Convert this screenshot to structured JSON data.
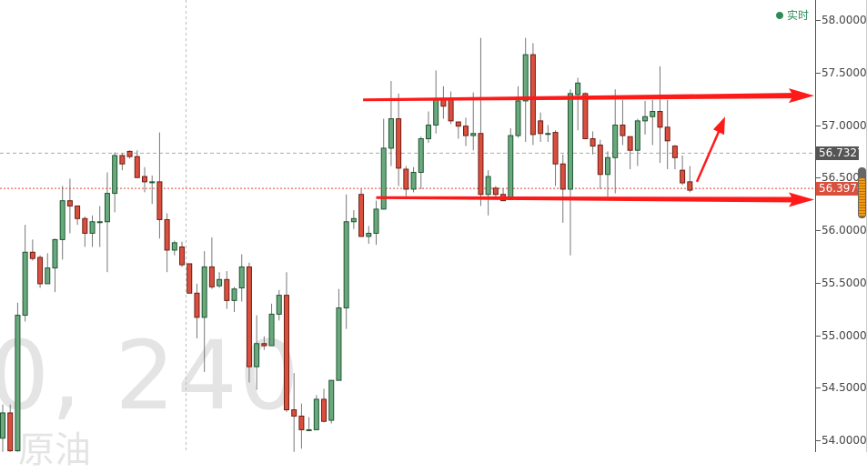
{
  "watermark": {
    "symbol_interval": "0, 240",
    "name": "原油"
  },
  "status": {
    "label": "实时",
    "color": "#2e8b57"
  },
  "colors": {
    "up_fill": "#6aa87e",
    "up_border": "#1f5631",
    "down_fill": "#d9503f",
    "down_border": "#6e1d14",
    "wick": "#777777",
    "annotation": "#ff1a1a",
    "last_price_bg": "#d9503f",
    "crosshair_label_bg": "#555555"
  },
  "chart_data": {
    "type": "candlestick",
    "title": "",
    "price_axis": {
      "position": "right",
      "ticks": [
        "58.0000",
        "57.5000",
        "57.0000",
        "56.5000",
        "56.0000",
        "55.5000",
        "55.0000",
        "54.5000",
        "54.0000"
      ],
      "range": [
        53.89,
        58.19
      ]
    },
    "last_price": {
      "label": "56.3970",
      "value": 56.397
    },
    "crosshair_price": {
      "label": "56.7327",
      "value": 56.7327
    },
    "grid": false,
    "candles_ohlc": [
      [
        54.02,
        54.34,
        53.89,
        54.26
      ],
      [
        54.26,
        54.34,
        53.89,
        53.9
      ],
      [
        53.9,
        55.31,
        53.89,
        55.19
      ],
      [
        55.19,
        56.05,
        55.13,
        55.79
      ],
      [
        55.79,
        55.91,
        55.71,
        55.73
      ],
      [
        55.74,
        55.76,
        55.45,
        55.49
      ],
      [
        55.49,
        55.78,
        55.49,
        55.64
      ],
      [
        55.64,
        55.92,
        55.41,
        55.91
      ],
      [
        55.91,
        56.42,
        55.72,
        56.28
      ],
      [
        56.28,
        56.49,
        55.97,
        56.23
      ],
      [
        56.23,
        56.23,
        56.05,
        56.11
      ],
      [
        56.11,
        56.13,
        55.84,
        55.97
      ],
      [
        55.97,
        56.14,
        55.84,
        56.08
      ],
      [
        56.08,
        56.23,
        55.84,
        56.08
      ],
      [
        56.08,
        56.55,
        55.6,
        56.35
      ],
      [
        56.35,
        56.74,
        56.17,
        56.71
      ],
      [
        56.71,
        56.73,
        56.57,
        56.63
      ],
      [
        56.75,
        56.76,
        56.68,
        56.7
      ],
      [
        56.7,
        56.76,
        56.5,
        56.5
      ],
      [
        56.51,
        56.6,
        56.36,
        56.46
      ],
      [
        56.46,
        56.52,
        56.25,
        56.46
      ],
      [
        56.46,
        56.93,
        55.92,
        56.1
      ],
      [
        56.1,
        56.16,
        55.6,
        55.81
      ],
      [
        55.81,
        55.9,
        55.76,
        55.88
      ],
      [
        55.84,
        55.89,
        55.65,
        55.67
      ],
      [
        55.68,
        55.68,
        55.4,
        55.4
      ],
      [
        55.4,
        55.49,
        54.97,
        55.17
      ],
      [
        55.17,
        55.8,
        54.65,
        55.65
      ],
      [
        55.65,
        55.93,
        55.44,
        55.46
      ],
      [
        55.47,
        55.6,
        55.45,
        55.53
      ],
      [
        55.53,
        55.61,
        55.25,
        55.33
      ],
      [
        55.33,
        55.46,
        55.22,
        55.44
      ],
      [
        55.45,
        55.77,
        55.32,
        55.65
      ],
      [
        55.65,
        55.69,
        54.55,
        54.7
      ],
      [
        54.7,
        55.19,
        54.48,
        54.92
      ],
      [
        54.92,
        54.99,
        54.86,
        54.9
      ],
      [
        54.9,
        55.3,
        54.9,
        55.2
      ],
      [
        55.2,
        55.43,
        55.14,
        55.38
      ],
      [
        55.38,
        55.6,
        54.27,
        54.29
      ],
      [
        54.29,
        54.64,
        53.89,
        54.23
      ],
      [
        54.23,
        54.35,
        53.92,
        54.1
      ],
      [
        54.1,
        54.22,
        54.1,
        54.1
      ],
      [
        54.1,
        54.43,
        54.1,
        54.39
      ],
      [
        54.39,
        54.49,
        54.17,
        54.18
      ],
      [
        54.19,
        54.57,
        54.16,
        54.57
      ],
      [
        54.57,
        55.44,
        54.57,
        55.26
      ],
      [
        55.26,
        56.34,
        55.06,
        56.08
      ],
      [
        56.08,
        56.19,
        56.01,
        56.11
      ],
      [
        56.34,
        56.39,
        55.94,
        55.94
      ],
      [
        55.94,
        56.04,
        55.87,
        55.97
      ],
      [
        55.97,
        56.28,
        55.86,
        56.2
      ],
      [
        56.2,
        57.06,
        56.2,
        56.78
      ],
      [
        56.78,
        57.42,
        56.61,
        57.06
      ],
      [
        57.06,
        57.3,
        56.42,
        56.59
      ],
      [
        56.58,
        56.61,
        56.31,
        56.39
      ],
      [
        56.39,
        56.6,
        56.36,
        56.55
      ],
      [
        56.55,
        56.89,
        56.39,
        56.87
      ],
      [
        56.87,
        57.13,
        56.83,
        57.0
      ],
      [
        57.0,
        57.52,
        56.92,
        57.24
      ],
      [
        57.24,
        57.37,
        57.06,
        57.18
      ],
      [
        57.24,
        57.32,
        57.01,
        57.04
      ],
      [
        57.03,
        57.03,
        56.87,
        56.99
      ],
      [
        56.99,
        57.07,
        56.8,
        56.9
      ],
      [
        56.9,
        57.31,
        56.76,
        56.92
      ],
      [
        56.92,
        57.83,
        56.23,
        56.34
      ],
      [
        56.34,
        56.57,
        56.14,
        56.51
      ],
      [
        56.4,
        56.42,
        56.32,
        56.34
      ],
      [
        56.34,
        56.4,
        56.28,
        56.28
      ],
      [
        56.29,
        56.97,
        56.29,
        56.9
      ],
      [
        56.9,
        57.37,
        56.88,
        57.23
      ],
      [
        57.23,
        57.83,
        56.84,
        57.67
      ],
      [
        57.67,
        57.78,
        56.81,
        56.91
      ],
      [
        57.04,
        57.12,
        56.84,
        56.92
      ],
      [
        56.92,
        57.0,
        56.84,
        56.92
      ],
      [
        56.93,
        56.95,
        56.42,
        56.63
      ],
      [
        56.63,
        56.72,
        56.07,
        56.39
      ],
      [
        56.39,
        57.34,
        55.76,
        57.3
      ],
      [
        57.29,
        57.45,
        56.95,
        57.4
      ],
      [
        57.3,
        57.31,
        56.87,
        56.87
      ],
      [
        56.87,
        56.94,
        56.72,
        56.8
      ],
      [
        56.81,
        56.86,
        56.39,
        56.53
      ],
      [
        56.53,
        56.75,
        56.32,
        56.69
      ],
      [
        56.69,
        57.34,
        56.35,
        57.0
      ],
      [
        57.0,
        57.24,
        56.81,
        56.9
      ],
      [
        56.89,
        56.89,
        56.58,
        56.76
      ],
      [
        56.76,
        57.06,
        56.61,
        57.04
      ],
      [
        57.04,
        57.23,
        56.91,
        57.08
      ],
      [
        57.08,
        57.24,
        56.81,
        57.13
      ],
      [
        57.13,
        57.56,
        56.64,
        56.98
      ],
      [
        56.98,
        57.24,
        56.58,
        56.85
      ],
      [
        56.8,
        56.81,
        56.58,
        56.69
      ],
      [
        56.57,
        56.71,
        56.43,
        56.45
      ],
      [
        56.46,
        56.61,
        56.36,
        56.38
      ]
    ],
    "annotations": [
      {
        "type": "arrow",
        "description": "upper horizontal resistance arrow",
        "price_start": 57.24,
        "price_end": 57.28,
        "candle_start": 48
      },
      {
        "type": "arrow",
        "description": "lower horizontal support arrow",
        "price_start": 56.31,
        "price_end": 56.29,
        "candle_start": 50
      },
      {
        "type": "arrow",
        "description": "upward projection arrow",
        "price_start": 56.46,
        "price_end": 57.08
      }
    ]
  }
}
